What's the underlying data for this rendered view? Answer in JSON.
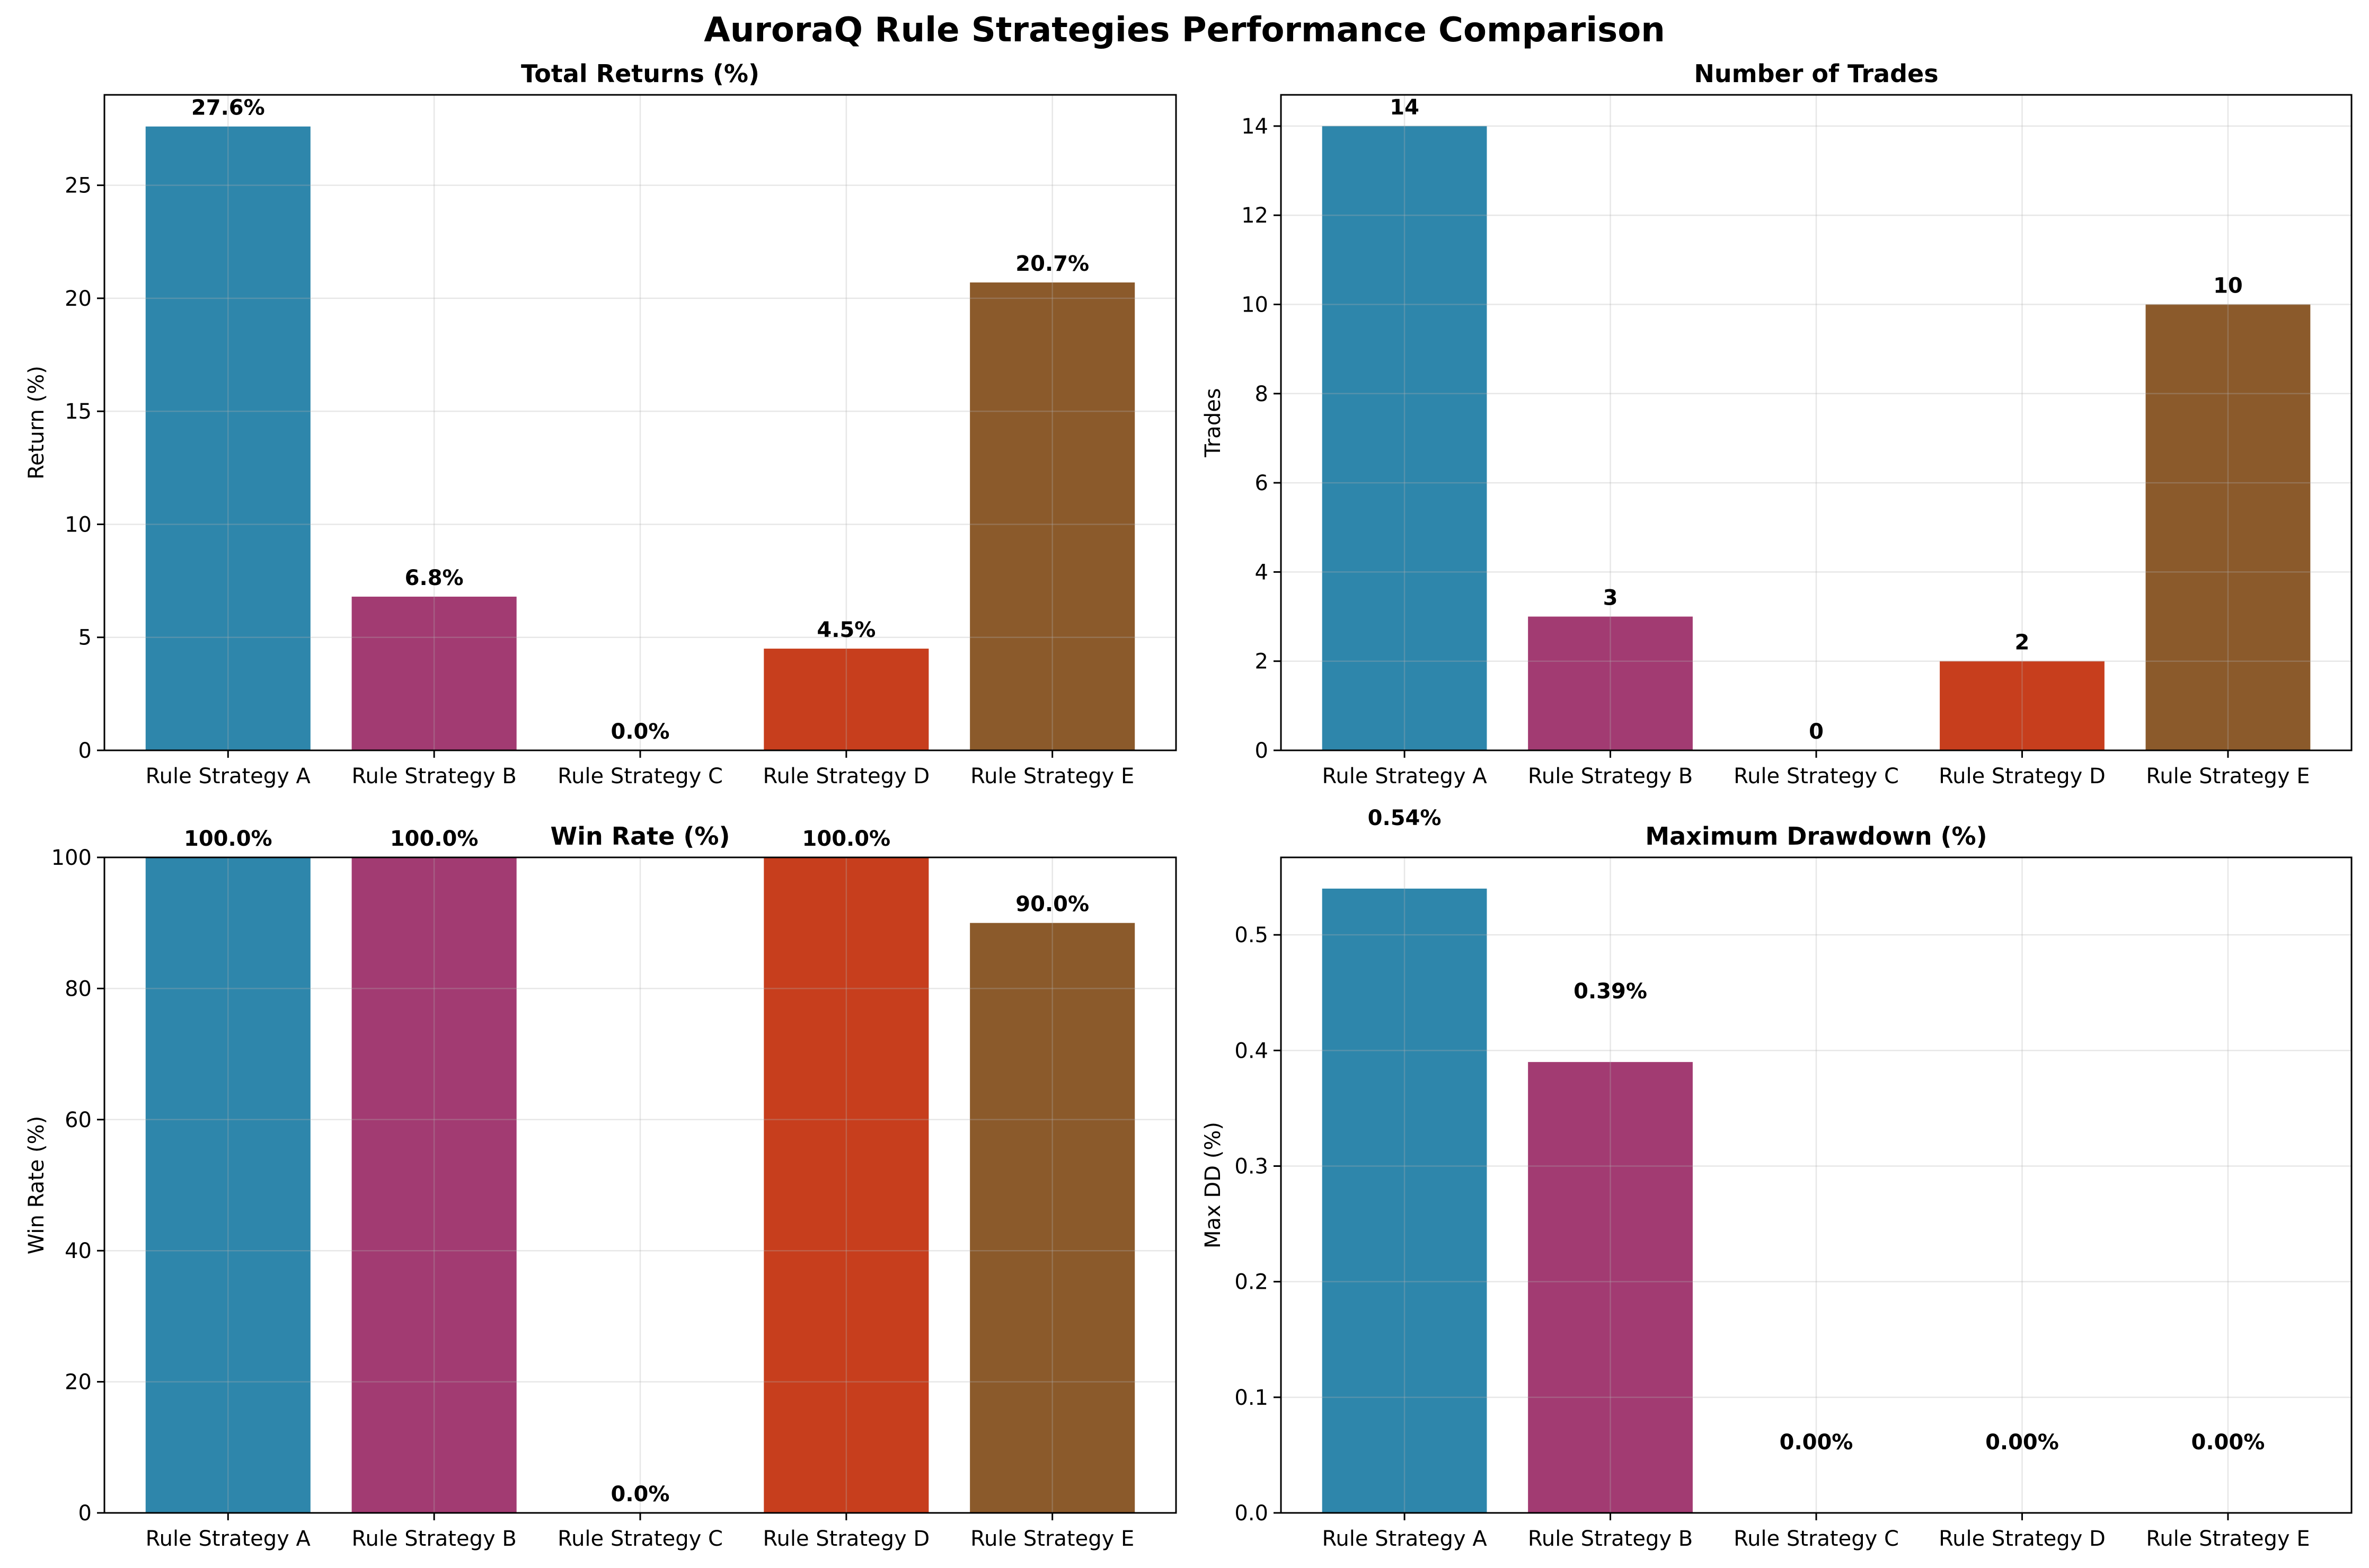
{
  "title": "AuroraQ Rule Strategies Performance Comparison",
  "colors": [
    "#2E86AB",
    "#A23B72",
    "#F18F01",
    "#C73E1D",
    "#8B5A2B"
  ],
  "chart_data": [
    {
      "type": "bar",
      "title": "Total Returns (%)",
      "ylabel": "Return (%)",
      "categories": [
        "Rule Strategy A",
        "Rule Strategy B",
        "Rule Strategy C",
        "Rule Strategy D",
        "Rule Strategy E"
      ],
      "values": [
        27.6,
        6.8,
        0.0,
        4.5,
        20.7
      ],
      "data_labels": [
        "27.6%",
        "6.8%",
        "0.0%",
        "4.5%",
        "20.7%"
      ],
      "ylim": [
        0,
        29
      ],
      "yticks": [
        0,
        5,
        10,
        15,
        20,
        25
      ],
      "ytick_labels": [
        "0",
        "5",
        "10",
        "15",
        "20",
        "25"
      ],
      "grid": true
    },
    {
      "type": "bar",
      "title": "Number of Trades",
      "ylabel": "Trades",
      "categories": [
        "Rule Strategy A",
        "Rule Strategy B",
        "Rule Strategy C",
        "Rule Strategy D",
        "Rule Strategy E"
      ],
      "values": [
        14,
        3,
        0,
        2,
        10
      ],
      "data_labels": [
        "14",
        "3",
        "0",
        "2",
        "10"
      ],
      "ylim": [
        0,
        14.7
      ],
      "yticks": [
        0,
        2,
        4,
        6,
        8,
        10,
        12,
        14
      ],
      "ytick_labels": [
        "0",
        "2",
        "4",
        "6",
        "8",
        "10",
        "12",
        "14"
      ],
      "grid": true
    },
    {
      "type": "bar",
      "title": "Win Rate (%)",
      "ylabel": "Win Rate (%)",
      "categories": [
        "Rule Strategy A",
        "Rule Strategy B",
        "Rule Strategy C",
        "Rule Strategy D",
        "Rule Strategy E"
      ],
      "values": [
        100.0,
        100.0,
        0.0,
        100.0,
        90.0
      ],
      "data_labels": [
        "100.0%",
        "100.0%",
        "0.0%",
        "100.0%",
        "90.0%"
      ],
      "ylim": [
        0,
        100
      ],
      "yticks": [
        0,
        20,
        40,
        60,
        80,
        100
      ],
      "ytick_labels": [
        "0",
        "20",
        "40",
        "60",
        "80",
        "100"
      ],
      "grid": true
    },
    {
      "type": "bar",
      "title": "Maximum Drawdown (%)",
      "ylabel": "Max DD (%)",
      "categories": [
        "Rule Strategy A",
        "Rule Strategy B",
        "Rule Strategy C",
        "Rule Strategy D",
        "Rule Strategy E"
      ],
      "values": [
        0.54,
        0.39,
        0.0,
        0.0,
        0.0
      ],
      "data_labels": [
        "0.54%",
        "0.39%",
        "0.00%",
        "0.00%",
        "0.00%"
      ],
      "ylim": [
        0,
        0.567
      ],
      "yticks": [
        0.0,
        0.1,
        0.2,
        0.3,
        0.4,
        0.5
      ],
      "ytick_labels": [
        "0.0",
        "0.1",
        "0.2",
        "0.3",
        "0.4",
        "0.5"
      ],
      "grid": true
    }
  ]
}
